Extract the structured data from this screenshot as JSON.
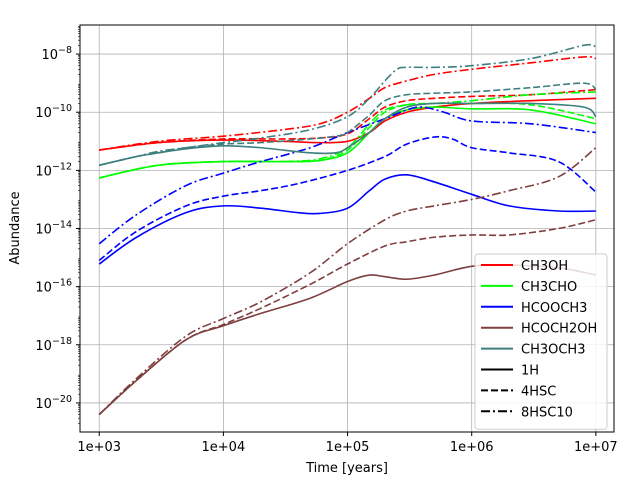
{
  "chart_data": {
    "type": "line",
    "xlabel": "Time [years]",
    "ylabel": "Abundance",
    "xscale": "log",
    "yscale": "log",
    "xlim": [
      700,
      14000000
    ],
    "ylim": [
      1e-21,
      1e-07
    ],
    "xticks": [
      1000,
      10000,
      100000,
      1000000,
      10000000
    ],
    "xtick_labels": [
      "1e+03",
      "1e+04",
      "1e+05",
      "1e+06",
      "1e+07"
    ],
    "yticks": [
      1e-20,
      1e-18,
      1e-16,
      1e-14,
      1e-12,
      1e-10,
      1e-08
    ],
    "ytick_labels": [
      {
        "base": "10",
        "exp": "−20"
      },
      {
        "base": "10",
        "exp": "−18"
      },
      {
        "base": "10",
        "exp": "−16"
      },
      {
        "base": "10",
        "exp": "−14"
      },
      {
        "base": "10",
        "exp": "−12"
      },
      {
        "base": "10",
        "exp": "−10"
      },
      {
        "base": "10",
        "exp": "−8"
      }
    ],
    "grid": true,
    "legend_position": "lower-right",
    "legend": [
      {
        "label": "CH3OH",
        "color": "#ff0000",
        "style": "solid"
      },
      {
        "label": "CH3CHO",
        "color": "#00ff00",
        "style": "solid"
      },
      {
        "label": "HCOOCH3",
        "color": "#0000ff",
        "style": "solid"
      },
      {
        "label": "HCOCH2OH",
        "color": "#7f3f3f",
        "style": "solid"
      },
      {
        "label": "CH3OCH3",
        "color": "#3f7f7f",
        "style": "solid"
      },
      {
        "label": "1H",
        "color": "#000000",
        "style": "solid"
      },
      {
        "label": "4HSC",
        "color": "#000000",
        "style": "dashed"
      },
      {
        "label": "8HSC10",
        "color": "#000000",
        "style": "dashdot"
      }
    ],
    "series": [
      {
        "species": "CH3OH",
        "model": "1H",
        "color": "#ff0000",
        "style": "solid",
        "x": [
          1000,
          3000,
          10000,
          30000,
          60000,
          100000,
          150000,
          200000,
          300000,
          500000,
          1000000,
          3000000,
          10000000
        ],
        "y": [
          5e-12,
          9e-12,
          1.1e-11,
          1e-11,
          9e-12,
          1e-11,
          2e-11,
          5e-11,
          1e-10,
          1.5e-10,
          2e-10,
          2.5e-10,
          3e-10
        ]
      },
      {
        "species": "CH3OH",
        "model": "4HSC",
        "color": "#ff0000",
        "style": "dashed",
        "x": [
          1000,
          3000,
          10000,
          30000,
          60000,
          100000,
          150000,
          200000,
          300000,
          500000,
          1000000,
          3000000,
          10000000
        ],
        "y": [
          5e-12,
          9e-12,
          1.2e-11,
          1.2e-11,
          1.3e-11,
          1.8e-11,
          6e-11,
          1.5e-10,
          2.5e-10,
          3e-10,
          3.5e-10,
          4e-10,
          6e-10
        ]
      },
      {
        "species": "CH3OH",
        "model": "8HSC10",
        "color": "#ff0000",
        "style": "dashdot",
        "x": [
          1000,
          3000,
          10000,
          30000,
          60000,
          100000,
          150000,
          200000,
          300000,
          500000,
          1000000,
          3000000,
          8000000,
          10000000
        ],
        "y": [
          5e-12,
          1e-11,
          1.5e-11,
          2.5e-11,
          4e-11,
          1e-10,
          3e-10,
          7e-10,
          1.2e-09,
          2e-09,
          3e-09,
          5e-09,
          8e-09,
          7e-09
        ]
      },
      {
        "species": "CH3CHO",
        "model": "1H",
        "color": "#00ff00",
        "style": "solid",
        "x": [
          1000,
          3000,
          10000,
          30000,
          60000,
          100000,
          150000,
          200000,
          300000,
          500000,
          1000000,
          3000000,
          10000000
        ],
        "y": [
          5.5e-13,
          1.5e-12,
          2e-12,
          2e-12,
          2.2e-12,
          4e-12,
          2e-11,
          6e-11,
          1.2e-10,
          1.5e-10,
          1.3e-10,
          1.2e-10,
          4e-11
        ]
      },
      {
        "species": "CH3CHO",
        "model": "4HSC",
        "color": "#00ff00",
        "style": "dashed",
        "x": [
          1000,
          3000,
          10000,
          30000,
          60000,
          100000,
          150000,
          200000,
          300000,
          500000,
          1000000,
          3000000,
          10000000
        ],
        "y": [
          5.5e-13,
          1.5e-12,
          2e-12,
          2e-12,
          2.2e-12,
          5e-12,
          3e-11,
          1e-10,
          1.8e-10,
          2e-10,
          2e-10,
          1.8e-10,
          6e-11
        ]
      },
      {
        "species": "CH3CHO",
        "model": "8HSC10",
        "color": "#00ff00",
        "style": "dashdot",
        "x": [
          1000,
          3000,
          10000,
          30000,
          60000,
          100000,
          150000,
          200000,
          300000,
          500000,
          1000000,
          3000000,
          10000000
        ],
        "y": [
          5.5e-13,
          1.5e-12,
          2e-12,
          2e-12,
          2.5e-12,
          6e-12,
          4e-11,
          1.2e-10,
          1.8e-10,
          2e-10,
          2.5e-10,
          4e-10,
          5e-10
        ]
      },
      {
        "species": "HCOOCH3",
        "model": "1H",
        "color": "#0000ff",
        "style": "solid",
        "x": [
          1000,
          2000,
          5000,
          10000,
          20000,
          40000,
          60000,
          100000,
          150000,
          200000,
          300000,
          500000,
          1000000,
          2000000,
          5000000,
          10000000
        ],
        "y": [
          6e-16,
          5e-15,
          3.5e-14,
          6e-14,
          5e-14,
          3.5e-14,
          3.3e-14,
          5e-14,
          2e-13,
          5e-13,
          7e-13,
          4e-13,
          1.5e-13,
          6e-14,
          4e-14,
          4e-14
        ]
      },
      {
        "species": "HCOOCH3",
        "model": "4HSC",
        "color": "#0000ff",
        "style": "dashed",
        "x": [
          1000,
          2000,
          5000,
          10000,
          20000,
          40000,
          100000,
          200000,
          300000,
          500000,
          700000,
          1000000,
          2000000,
          5000000,
          10000000
        ],
        "y": [
          8e-16,
          8e-15,
          6e-14,
          1.3e-13,
          2e-13,
          3.5e-13,
          1e-12,
          3e-12,
          8e-12,
          1.4e-11,
          1.2e-11,
          6e-12,
          4e-12,
          2e-12,
          1.8e-13
        ]
      },
      {
        "species": "HCOOCH3",
        "model": "8HSC10",
        "color": "#0000ff",
        "style": "dashdot",
        "x": [
          1000,
          2000,
          5000,
          10000,
          20000,
          50000,
          100000,
          200000,
          300000,
          400000,
          600000,
          1000000,
          3000000,
          10000000
        ],
        "y": [
          3e-15,
          3e-14,
          3e-13,
          8e-13,
          2e-12,
          6e-12,
          2e-11,
          6e-11,
          1.2e-10,
          1.5e-10,
          1e-10,
          5e-11,
          4e-11,
          2e-11
        ]
      },
      {
        "species": "HCOCH2OH",
        "model": "1H",
        "color": "#7f3f3f",
        "style": "solid",
        "x": [
          1000,
          2000,
          5000,
          10000,
          20000,
          50000,
          100000,
          150000,
          200000,
          300000,
          500000,
          1000000,
          2000000,
          5000000,
          10000000
        ],
        "y": [
          4e-21,
          6e-20,
          1.5e-18,
          4.5e-18,
          1.2e-17,
          4e-17,
          1.5e-16,
          2.5e-16,
          2.2e-16,
          1.8e-16,
          2.5e-16,
          5e-16,
          5.5e-16,
          4.5e-16,
          2.5e-16
        ]
      },
      {
        "species": "HCOCH2OH",
        "model": "4HSC",
        "color": "#7f3f3f",
        "style": "dashed",
        "x": [
          1000,
          2000,
          5000,
          10000,
          20000,
          50000,
          100000,
          200000,
          300000,
          500000,
          1000000,
          2000000,
          5000000,
          10000000
        ],
        "y": [
          4e-21,
          6e-20,
          1.5e-18,
          5e-18,
          1.8e-17,
          1.2e-16,
          6e-16,
          2.5e-15,
          3.5e-15,
          5e-15,
          6e-15,
          6e-15,
          1e-14,
          2e-14
        ]
      },
      {
        "species": "HCOCH2OH",
        "model": "8HSC10",
        "color": "#7f3f3f",
        "style": "dashdot",
        "x": [
          1000,
          2000,
          5000,
          10000,
          20000,
          50000,
          100000,
          200000,
          300000,
          500000,
          1000000,
          2000000,
          5000000,
          10000000
        ],
        "y": [
          4e-21,
          7e-20,
          2e-18,
          8e-18,
          3e-17,
          3e-16,
          3e-15,
          2e-14,
          4e-14,
          6e-14,
          1e-13,
          2e-13,
          6e-13,
          6e-12
        ]
      },
      {
        "species": "CH3OCH3",
        "model": "1H",
        "color": "#3f7f7f",
        "style": "solid",
        "x": [
          1000,
          2000,
          3000,
          5000,
          10000,
          20000,
          50000,
          80000,
          100000,
          150000,
          200000,
          300000,
          500000,
          1000000,
          3000000,
          8000000,
          10000000
        ],
        "y": [
          1.5e-12,
          3e-12,
          4e-12,
          5.5e-12,
          7e-12,
          6e-12,
          4e-12,
          4e-12,
          6e-12,
          2e-11,
          6e-11,
          1.5e-10,
          2e-10,
          2e-10,
          2e-10,
          1.5e-10,
          7e-11
        ]
      },
      {
        "species": "CH3OCH3",
        "model": "4HSC",
        "color": "#3f7f7f",
        "style": "dashed",
        "x": [
          1000,
          2000,
          3000,
          5000,
          10000,
          20000,
          50000,
          80000,
          100000,
          150000,
          200000,
          300000,
          500000,
          1000000,
          3000000,
          8000000,
          10000000
        ],
        "y": [
          1.5e-12,
          3e-12,
          4e-12,
          6e-12,
          8e-12,
          9e-12,
          1.2e-11,
          1.5e-11,
          2e-11,
          8e-11,
          2.5e-10,
          4e-10,
          4.5e-10,
          5e-10,
          7e-10,
          1e-09,
          6e-10
        ]
      },
      {
        "species": "CH3OCH3",
        "model": "8HSC10",
        "color": "#3f7f7f",
        "style": "dashdot",
        "x": [
          1000,
          2000,
          3000,
          5000,
          10000,
          20000,
          50000,
          100000,
          150000,
          200000,
          250000,
          300000,
          500000,
          1000000,
          3000000,
          8000000,
          10000000
        ],
        "y": [
          1.5e-12,
          3e-12,
          4.5e-12,
          6e-12,
          9e-12,
          1.3e-11,
          2.5e-11,
          7e-11,
          3e-10,
          1.2e-09,
          3e-09,
          3.5e-09,
          3.5e-09,
          4e-09,
          7e-09,
          2e-08,
          1.8e-08
        ]
      }
    ]
  }
}
